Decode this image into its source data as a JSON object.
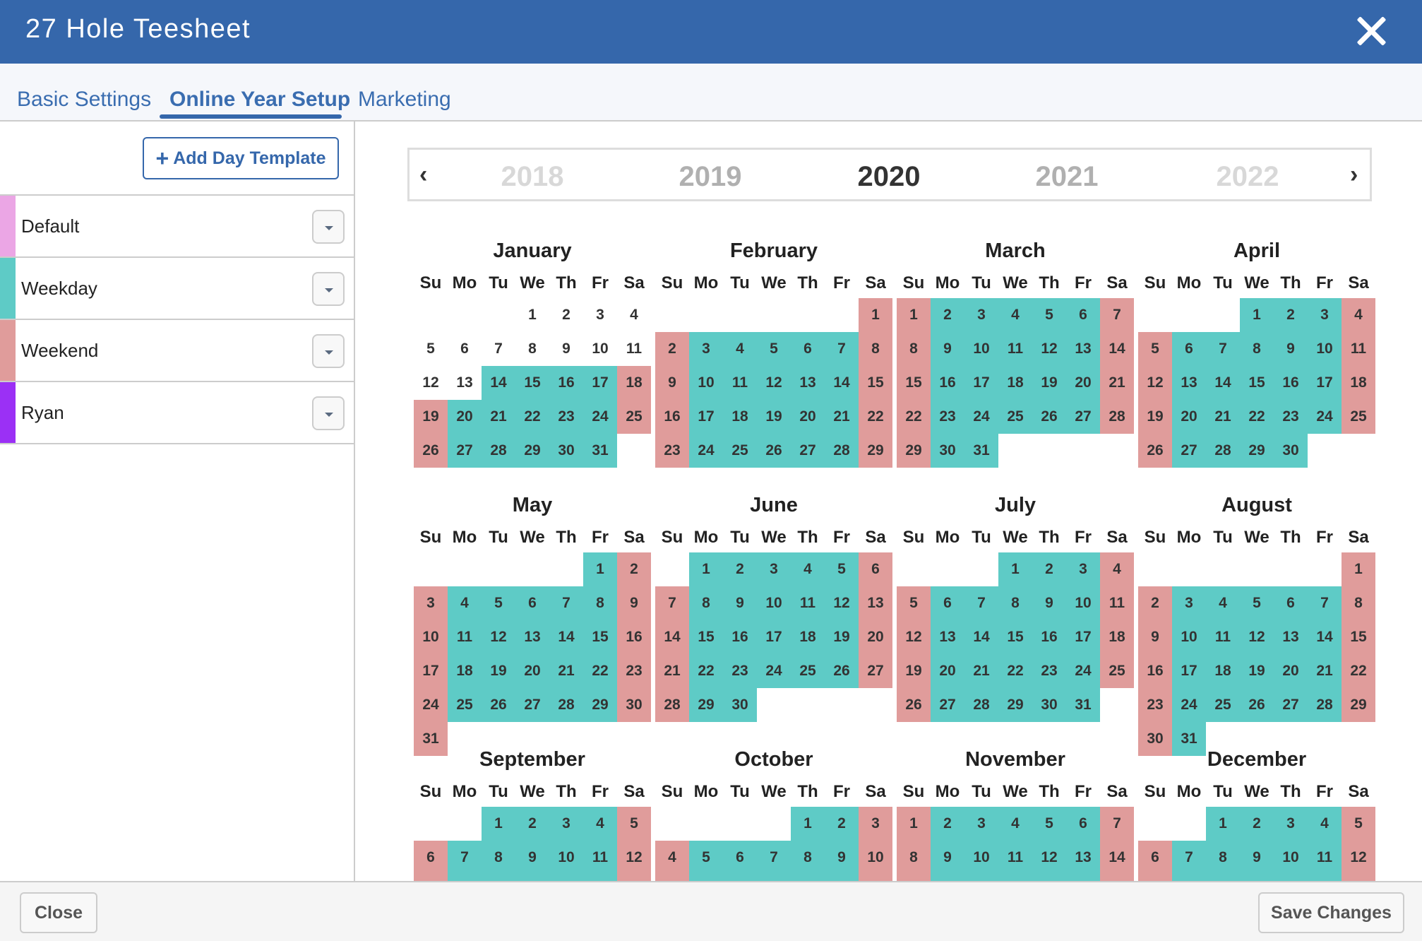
{
  "header": {
    "title": "27 Hole Teesheet",
    "close_icon": "close-x-icon"
  },
  "tabs": [
    {
      "label": "Basic Settings",
      "active": false
    },
    {
      "label": "Online Year Setup",
      "active": true
    },
    {
      "label": "Marketing",
      "active": false
    }
  ],
  "sidebar": {
    "add_button_label": "Add Day Template",
    "templates": [
      {
        "name": "Default",
        "color": "#eba6e5"
      },
      {
        "name": "Weekday",
        "color": "#5ecbc6"
      },
      {
        "name": "Weekend",
        "color": "#e09c9b"
      },
      {
        "name": "Ryan",
        "color": "#9b30f5"
      }
    ]
  },
  "year_nav": {
    "prev": "‹",
    "next": "›",
    "years": [
      "2018",
      "2019",
      "2020",
      "2021",
      "2022"
    ],
    "selected": "2020"
  },
  "calendar": {
    "year": 2020,
    "months": [
      "January",
      "February",
      "March",
      "April",
      "May",
      "June",
      "July",
      "August",
      "September",
      "October",
      "November",
      "December"
    ],
    "weekdays": [
      "Su",
      "Mo",
      "Tu",
      "We",
      "Th",
      "Fr",
      "Sa"
    ],
    "assignments": {
      "unassigned_before": "2020-01-14",
      "weekday_template": "Weekday",
      "weekend_template": "Weekend"
    }
  },
  "footer": {
    "close_label": "Close",
    "save_label": "Save Changes"
  }
}
